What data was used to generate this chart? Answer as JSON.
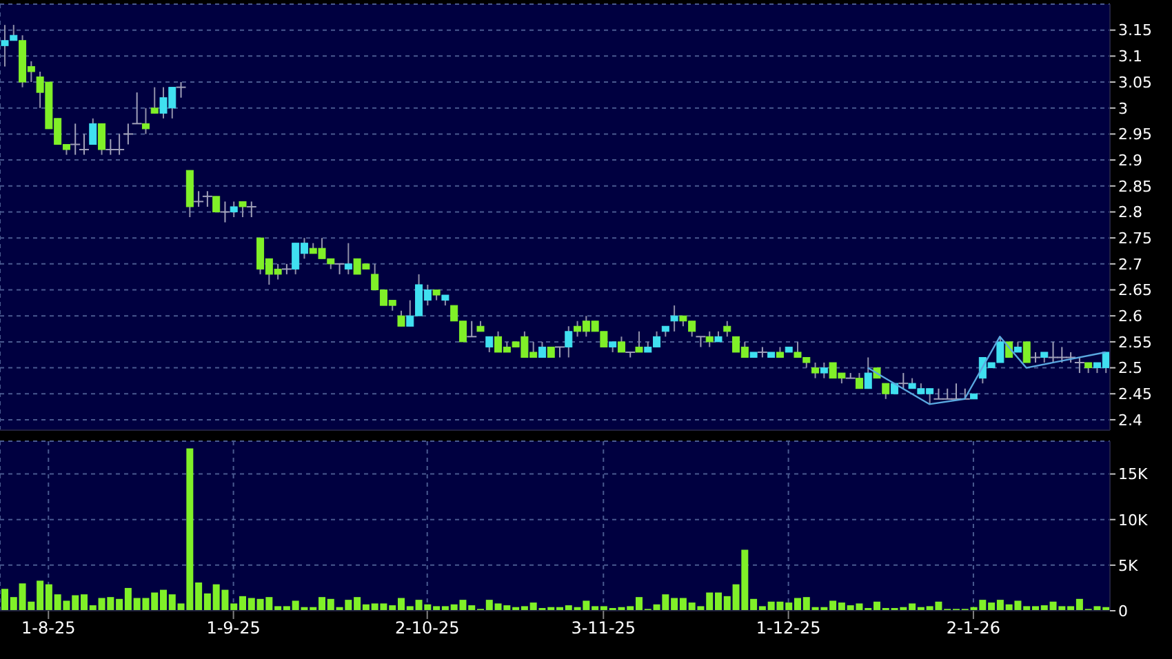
{
  "chart_data": [
    {
      "type": "candlestick",
      "tick_labels": "y",
      "grid": true,
      "ylim": [
        2.38,
        3.2
      ],
      "yticks": [
        2.4,
        2.45,
        2.5,
        2.55,
        2.6,
        2.65,
        2.7,
        2.75,
        2.8,
        2.85,
        2.9,
        2.95,
        3,
        3.05,
        3.1,
        3.15
      ],
      "categories": [
        null,
        null,
        null,
        null,
        null,
        null,
        null,
        null,
        null,
        null,
        null,
        null,
        null,
        null,
        null,
        null,
        null,
        null,
        null,
        null,
        null,
        null,
        null,
        null,
        null,
        null,
        null,
        null,
        null,
        null,
        null,
        null,
        null,
        null,
        null,
        null,
        null,
        null,
        null,
        null,
        null,
        null,
        null,
        null,
        null,
        null,
        null,
        null,
        null,
        null,
        null,
        null,
        null,
        null,
        null,
        null,
        null,
        null,
        null,
        null,
        null,
        null,
        null,
        null,
        null,
        null,
        null,
        null,
        null,
        null,
        null,
        null,
        null,
        null,
        null,
        null,
        null,
        null,
        null,
        null,
        null,
        null,
        null,
        null,
        null,
        null,
        null,
        null,
        null,
        null,
        null,
        null,
        null,
        null,
        null,
        null,
        null,
        null,
        null,
        null,
        null,
        null,
        null,
        null,
        null,
        null,
        null,
        null,
        null,
        null,
        null,
        null,
        null,
        null,
        null,
        null,
        null,
        null,
        null,
        null,
        null,
        null,
        null,
        null,
        null,
        null
      ],
      "ohlc": [
        [
          3.12,
          3.16,
          3.08,
          3.13
        ],
        [
          3.13,
          3.16,
          3.13,
          3.14
        ],
        [
          3.13,
          3.14,
          3.04,
          3.05
        ],
        [
          3.08,
          3.09,
          3.05,
          3.07
        ],
        [
          3.06,
          3.07,
          3.0,
          3.03
        ],
        [
          3.05,
          3.05,
          2.96,
          2.96
        ],
        [
          2.98,
          2.98,
          2.93,
          2.93
        ],
        [
          2.93,
          2.93,
          2.91,
          2.92
        ],
        [
          2.93,
          2.97,
          2.91,
          2.93
        ],
        [
          2.92,
          2.95,
          2.91,
          2.92
        ],
        [
          2.93,
          2.98,
          2.93,
          2.97
        ],
        [
          2.97,
          2.97,
          2.91,
          2.92
        ],
        [
          2.92,
          2.94,
          2.91,
          2.92
        ],
        [
          2.92,
          2.95,
          2.91,
          2.92
        ],
        [
          2.95,
          2.97,
          2.93,
          2.95
        ],
        [
          2.97,
          3.03,
          2.97,
          2.97
        ],
        [
          2.97,
          3.0,
          2.95,
          2.96
        ],
        [
          3.0,
          3.04,
          2.99,
          2.99
        ],
        [
          2.99,
          3.04,
          2.98,
          3.02
        ],
        [
          3.0,
          3.04,
          2.98,
          3.04
        ],
        [
          3.04,
          3.05,
          3.02,
          3.04
        ],
        [
          2.88,
          2.88,
          2.79,
          2.81
        ],
        [
          2.82,
          2.84,
          2.81,
          2.82
        ],
        [
          2.83,
          2.84,
          2.81,
          2.83
        ],
        [
          2.83,
          2.83,
          2.8,
          2.8
        ],
        [
          2.8,
          2.82,
          2.78,
          2.8
        ],
        [
          2.8,
          2.82,
          2.79,
          2.81
        ],
        [
          2.82,
          2.82,
          2.79,
          2.81
        ],
        [
          2.81,
          2.82,
          2.79,
          2.81
        ],
        [
          2.75,
          2.75,
          2.68,
          2.69
        ],
        [
          2.71,
          2.71,
          2.66,
          2.68
        ],
        [
          2.69,
          2.7,
          2.67,
          2.68
        ],
        [
          2.69,
          2.7,
          2.68,
          2.69
        ],
        [
          2.69,
          2.74,
          2.68,
          2.74
        ],
        [
          2.72,
          2.75,
          2.71,
          2.74
        ],
        [
          2.73,
          2.74,
          2.72,
          2.72
        ],
        [
          2.73,
          2.75,
          2.71,
          2.71
        ],
        [
          2.71,
          2.71,
          2.69,
          2.7
        ],
        [
          2.7,
          2.7,
          2.68,
          2.7
        ],
        [
          2.69,
          2.74,
          2.68,
          2.7
        ],
        [
          2.71,
          2.71,
          2.68,
          2.68
        ],
        [
          2.7,
          2.7,
          2.69,
          2.69
        ],
        [
          2.68,
          2.7,
          2.65,
          2.65
        ],
        [
          2.65,
          2.65,
          2.62,
          2.62
        ],
        [
          2.63,
          2.63,
          2.61,
          2.62
        ],
        [
          2.6,
          2.61,
          2.58,
          2.58
        ],
        [
          2.58,
          2.63,
          2.58,
          2.6
        ],
        [
          2.6,
          2.68,
          2.6,
          2.66
        ],
        [
          2.63,
          2.66,
          2.62,
          2.65
        ],
        [
          2.65,
          2.65,
          2.63,
          2.64
        ],
        [
          2.63,
          2.64,
          2.62,
          2.64
        ],
        [
          2.62,
          2.62,
          2.59,
          2.59
        ],
        [
          2.59,
          2.59,
          2.55,
          2.55
        ],
        [
          2.56,
          2.59,
          2.56,
          2.56
        ],
        [
          2.58,
          2.59,
          2.57,
          2.57
        ],
        [
          2.54,
          2.56,
          2.53,
          2.56
        ],
        [
          2.56,
          2.57,
          2.53,
          2.53
        ],
        [
          2.54,
          2.55,
          2.53,
          2.53
        ],
        [
          2.55,
          2.55,
          2.54,
          2.54
        ],
        [
          2.56,
          2.57,
          2.52,
          2.52
        ],
        [
          2.53,
          2.55,
          2.52,
          2.52
        ],
        [
          2.52,
          2.55,
          2.52,
          2.54
        ],
        [
          2.54,
          2.54,
          2.52,
          2.52
        ],
        [
          2.54,
          2.54,
          2.52,
          2.54
        ],
        [
          2.54,
          2.58,
          2.52,
          2.57
        ],
        [
          2.58,
          2.59,
          2.56,
          2.57
        ],
        [
          2.59,
          2.6,
          2.56,
          2.57
        ],
        [
          2.59,
          2.59,
          2.57,
          2.57
        ],
        [
          2.57,
          2.57,
          2.54,
          2.54
        ],
        [
          2.54,
          2.55,
          2.53,
          2.55
        ],
        [
          2.55,
          2.56,
          2.53,
          2.53
        ],
        [
          2.53,
          2.53,
          2.52,
          2.53
        ],
        [
          2.54,
          2.57,
          2.53,
          2.53
        ],
        [
          2.53,
          2.55,
          2.53,
          2.54
        ],
        [
          2.54,
          2.57,
          2.54,
          2.56
        ],
        [
          2.57,
          2.58,
          2.56,
          2.58
        ],
        [
          2.59,
          2.62,
          2.57,
          2.6
        ],
        [
          2.6,
          2.6,
          2.58,
          2.59
        ],
        [
          2.59,
          2.59,
          2.56,
          2.57
        ],
        [
          2.56,
          2.56,
          2.54,
          2.56
        ],
        [
          2.56,
          2.57,
          2.54,
          2.55
        ],
        [
          2.55,
          2.57,
          2.55,
          2.56
        ],
        [
          2.58,
          2.59,
          2.56,
          2.57
        ],
        [
          2.56,
          2.56,
          2.53,
          2.53
        ],
        [
          2.54,
          2.55,
          2.52,
          2.52
        ],
        [
          2.52,
          2.53,
          2.52,
          2.53
        ],
        [
          2.53,
          2.54,
          2.52,
          2.53
        ],
        [
          2.52,
          2.53,
          2.52,
          2.53
        ],
        [
          2.53,
          2.54,
          2.52,
          2.52
        ],
        [
          2.53,
          2.54,
          2.53,
          2.54
        ],
        [
          2.53,
          2.55,
          2.52,
          2.52
        ],
        [
          2.52,
          2.52,
          2.5,
          2.51
        ],
        [
          2.5,
          2.51,
          2.48,
          2.49
        ],
        [
          2.49,
          2.51,
          2.48,
          2.5
        ],
        [
          2.51,
          2.51,
          2.48,
          2.48
        ],
        [
          2.49,
          2.49,
          2.47,
          2.48
        ],
        [
          2.48,
          2.49,
          2.48,
          2.48
        ],
        [
          2.48,
          2.49,
          2.46,
          2.46
        ],
        [
          2.46,
          2.52,
          2.46,
          2.49
        ],
        [
          2.5,
          2.5,
          2.48,
          2.48
        ],
        [
          2.47,
          2.47,
          2.44,
          2.45
        ],
        [
          2.45,
          2.47,
          2.45,
          2.47
        ],
        [
          2.47,
          2.49,
          2.46,
          2.47
        ],
        [
          2.46,
          2.48,
          2.46,
          2.47
        ],
        [
          2.45,
          2.47,
          2.45,
          2.46
        ],
        [
          2.45,
          2.46,
          2.43,
          2.46
        ],
        [
          2.44,
          2.46,
          2.44,
          2.44
        ],
        [
          2.44,
          2.46,
          2.44,
          2.44
        ],
        [
          2.44,
          2.47,
          2.44,
          2.44
        ],
        [
          2.44,
          2.46,
          2.44,
          2.44
        ],
        [
          2.44,
          2.45,
          2.44,
          2.45
        ],
        [
          2.48,
          2.52,
          2.47,
          2.52
        ],
        [
          2.5,
          2.51,
          2.5,
          2.51
        ],
        [
          2.51,
          2.56,
          2.51,
          2.55
        ],
        [
          2.55,
          2.55,
          2.52,
          2.52
        ],
        [
          2.53,
          2.55,
          2.53,
          2.54
        ],
        [
          2.55,
          2.55,
          2.51,
          2.51
        ],
        [
          2.52,
          2.53,
          2.51,
          2.52
        ],
        [
          2.52,
          2.53,
          2.51,
          2.53
        ],
        [
          2.52,
          2.55,
          2.51,
          2.52
        ],
        [
          2.52,
          2.54,
          2.51,
          2.52
        ],
        [
          2.52,
          2.53,
          2.51,
          2.52
        ],
        [
          2.51,
          2.52,
          2.49,
          2.51
        ],
        [
          2.51,
          2.51,
          2.49,
          2.5
        ],
        [
          2.5,
          2.51,
          2.49,
          2.51
        ],
        [
          2.5,
          2.53,
          2.49,
          2.53
        ]
      ],
      "colors": [
        "#40e0f0",
        "#40e0f0",
        "#80f028",
        "#80f028",
        "#80f028",
        "#80f028",
        "#80f028",
        "#80f028",
        "#a0a0b8",
        "#a0a0b8",
        "#40e0f0",
        "#80f028",
        "#a0a0b8",
        "#a0a0b8",
        "#a0a0b8",
        "#a0a0b8",
        "#80f028",
        "#80f028",
        "#40e0f0",
        "#40e0f0",
        "#a0a0b8",
        "#80f028",
        "#a0a0b8",
        "#a0a0b8",
        "#80f028",
        "#a0a0b8",
        "#40e0f0",
        "#80f028",
        "#a0a0b8",
        "#80f028",
        "#80f028",
        "#80f028",
        "#a0a0b8",
        "#40e0f0",
        "#40e0f0",
        "#80f028",
        "#80f028",
        "#80f028",
        "#a0a0b8",
        "#40e0f0",
        "#80f028",
        "#80f028",
        "#80f028",
        "#80f028",
        "#80f028",
        "#80f028",
        "#40e0f0",
        "#40e0f0",
        "#40e0f0",
        "#80f028",
        "#40e0f0",
        "#80f028",
        "#80f028",
        "#a0a0b8",
        "#80f028",
        "#40e0f0",
        "#80f028",
        "#80f028",
        "#80f028",
        "#80f028",
        "#80f028",
        "#40e0f0",
        "#80f028",
        "#a0a0b8",
        "#40e0f0",
        "#80f028",
        "#80f028",
        "#80f028",
        "#80f028",
        "#40e0f0",
        "#80f028",
        "#a0a0b8",
        "#80f028",
        "#40e0f0",
        "#40e0f0",
        "#40e0f0",
        "#40e0f0",
        "#80f028",
        "#80f028",
        "#a0a0b8",
        "#80f028",
        "#40e0f0",
        "#80f028",
        "#80f028",
        "#80f028",
        "#40e0f0",
        "#a0a0b8",
        "#40e0f0",
        "#80f028",
        "#40e0f0",
        "#80f028",
        "#80f028",
        "#80f028",
        "#40e0f0",
        "#80f028",
        "#80f028",
        "#a0a0b8",
        "#80f028",
        "#40e0f0",
        "#80f028",
        "#80f028",
        "#40e0f0",
        "#a0a0b8",
        "#40e0f0",
        "#40e0f0",
        "#40e0f0",
        "#a0a0b8",
        "#a0a0b8",
        "#a0a0b8",
        "#a0a0b8",
        "#40e0f0",
        "#40e0f0",
        "#40e0f0",
        "#40e0f0",
        "#80f028",
        "#40e0f0",
        "#80f028",
        "#a0a0b8",
        "#40e0f0",
        "#a0a0b8",
        "#a0a0b8",
        "#a0a0b8",
        "#a0a0b8",
        "#80f028",
        "#40e0f0",
        "#40e0f0"
      ],
      "series": [
        {
          "type": "line",
          "color": "#5aa8e0",
          "values": [
            null,
            null,
            null,
            null,
            null,
            null,
            null,
            null,
            null,
            null,
            null,
            null,
            null,
            null,
            null,
            null,
            null,
            null,
            null,
            null,
            null,
            null,
            null,
            null,
            null,
            null,
            null,
            null,
            null,
            null,
            null,
            null,
            null,
            null,
            null,
            null,
            null,
            null,
            null,
            null,
            null,
            null,
            null,
            null,
            null,
            null,
            null,
            null,
            null,
            null,
            null,
            null,
            null,
            null,
            null,
            null,
            null,
            null,
            null,
            null,
            null,
            null,
            null,
            null,
            null,
            null,
            null,
            null,
            null,
            null,
            null,
            null,
            null,
            null,
            null,
            null,
            null,
            null,
            null,
            null,
            null,
            null,
            null,
            null,
            null,
            null,
            null,
            null,
            null,
            null,
            null,
            null,
            null,
            null,
            null,
            null,
            null,
            null,
            2.5,
            null,
            null,
            null,
            null,
            null,
            null,
            2.43,
            null,
            null,
            null,
            2.44,
            null,
            null,
            null,
            2.56,
            null,
            null,
            2.5,
            null,
            null,
            null,
            null,
            null,
            null,
            null,
            null,
            2.53
          ]
        }
      ]
    },
    {
      "type": "bar",
      "grid": true,
      "color": "#80f028",
      "ylim": [
        0,
        18600
      ],
      "yticks": [
        0,
        {
          "value": 5000,
          "label": "5K"
        },
        {
          "value": 10000,
          "label": "10K"
        },
        {
          "value": 15000,
          "label": "15K"
        }
      ],
      "categories": [
        null,
        null,
        null,
        null,
        null,
        "1-8-25",
        null,
        null,
        null,
        null,
        null,
        null,
        null,
        null,
        null,
        null,
        null,
        null,
        null,
        null,
        null,
        null,
        null,
        null,
        null,
        null,
        "1-9-25",
        null,
        null,
        null,
        null,
        null,
        null,
        null,
        null,
        null,
        null,
        null,
        null,
        null,
        null,
        null,
        null,
        null,
        null,
        null,
        null,
        null,
        "2-10-25",
        null,
        null,
        null,
        null,
        null,
        null,
        null,
        null,
        null,
        null,
        null,
        null,
        null,
        null,
        null,
        null,
        null,
        null,
        null,
        "3-11-25",
        null,
        null,
        null,
        null,
        null,
        null,
        null,
        null,
        null,
        null,
        null,
        null,
        null,
        null,
        null,
        null,
        null,
        null,
        null,
        null,
        "1-12-25",
        null,
        null,
        null,
        null,
        null,
        null,
        null,
        null,
        null,
        null,
        null,
        null,
        null,
        null,
        null,
        null,
        null,
        null,
        null,
        null,
        "2-1-26",
        null,
        null,
        null,
        null,
        null,
        null,
        null,
        null,
        null,
        null,
        null,
        null,
        null,
        null,
        null
      ],
      "values": [
        2400,
        1500,
        3000,
        1000,
        3300,
        2900,
        1800,
        1100,
        1700,
        1800,
        600,
        1400,
        1500,
        1300,
        2500,
        1400,
        1400,
        2000,
        2300,
        1800,
        800,
        17800,
        3100,
        1900,
        2900,
        2300,
        800,
        1600,
        1400,
        1300,
        1500,
        500,
        500,
        1100,
        400,
        400,
        1500,
        1300,
        400,
        1200,
        1500,
        700,
        800,
        800,
        600,
        1400,
        500,
        1200,
        700,
        500,
        500,
        700,
        1200,
        600,
        200,
        1200,
        800,
        600,
        400,
        500,
        900,
        300,
        400,
        400,
        600,
        400,
        1100,
        500,
        500,
        300,
        400,
        500,
        1500,
        200,
        700,
        1800,
        1400,
        1400,
        900,
        500,
        2000,
        2000,
        1600,
        2900,
        6700,
        1300,
        500,
        1000,
        1000,
        900,
        1400,
        1500,
        400,
        400,
        1100,
        900,
        600,
        800,
        300,
        1000,
        300,
        300,
        400,
        800,
        400,
        500,
        1000,
        200,
        200,
        200,
        400,
        1200,
        900,
        1200,
        700,
        1100,
        500,
        500,
        600,
        1000,
        500,
        500,
        1300,
        200,
        500,
        400
      ]
    }
  ]
}
